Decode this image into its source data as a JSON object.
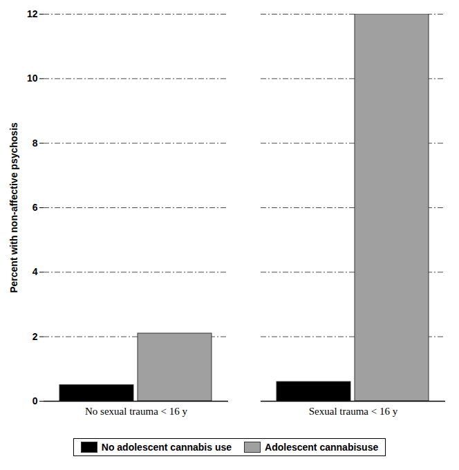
{
  "chart_data": {
    "type": "bar",
    "y_label": "Percent with non-affective psychosis",
    "categories": [
      "No sexual trauma < 16 y",
      "Sexual trauma < 16 y"
    ],
    "series": [
      {
        "name": "No adolescent cannabis use",
        "color": "#000000",
        "values": [
          0.5,
          0.6
        ]
      },
      {
        "name": "Adolescent cannabisuse",
        "color": "#a0a0a0",
        "values": [
          2.1,
          12
        ]
      }
    ],
    "ylim": [
      0,
      12
    ],
    "yticks": [
      0,
      2,
      4,
      6,
      8,
      10,
      12
    ],
    "grid": true,
    "legend": "bottom"
  }
}
